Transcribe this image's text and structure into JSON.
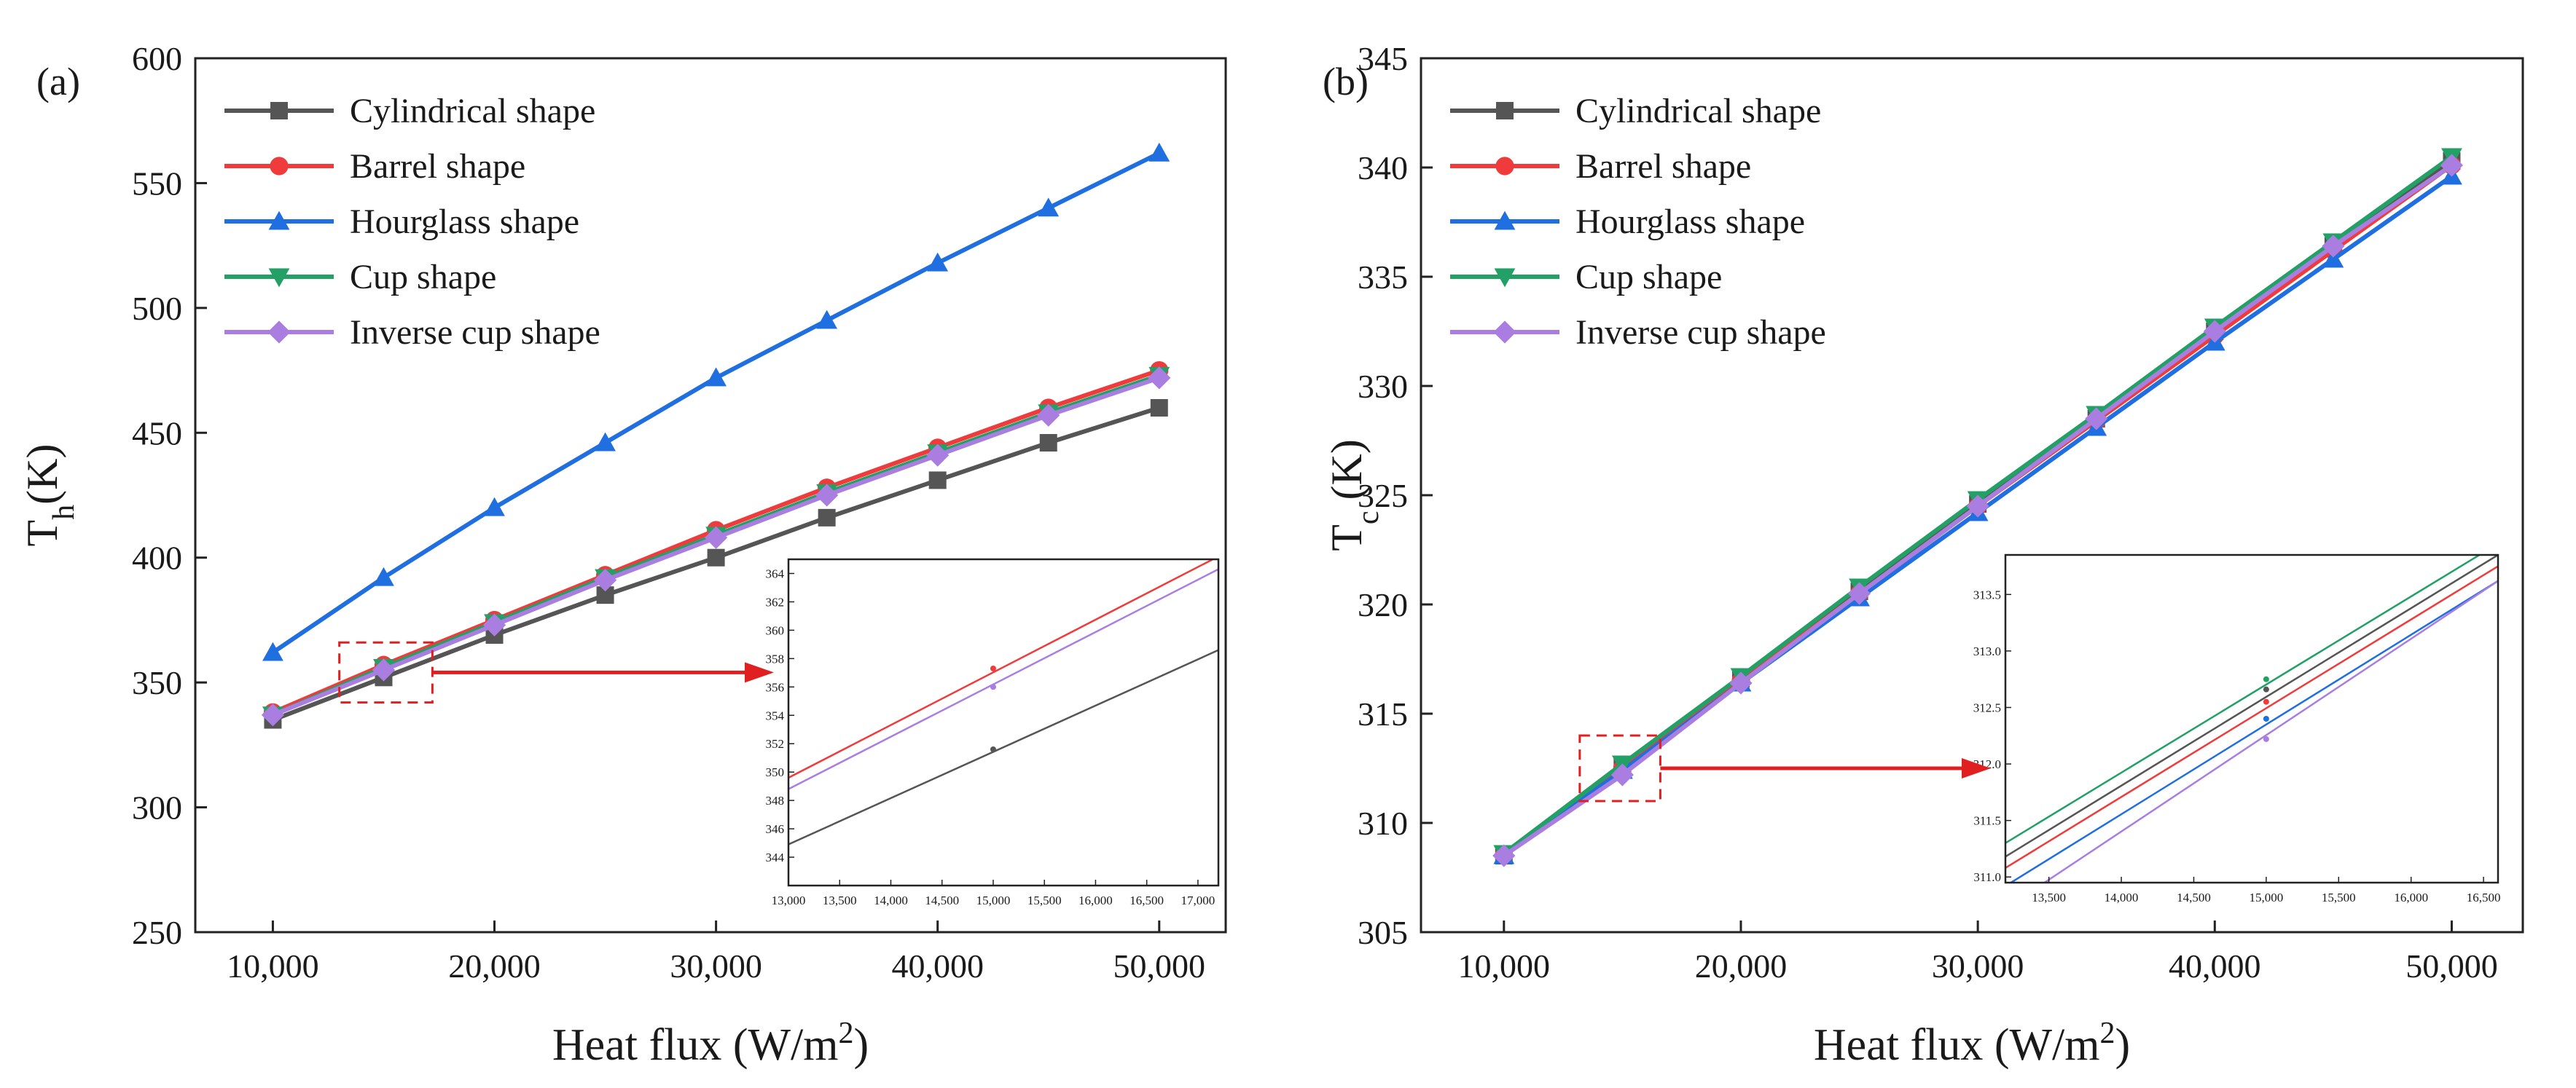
{
  "colors": {
    "Cylindrical shape": "#555555",
    "Barrel shape": "#ef3b3b",
    "Hourglass shape": "#1f6fe0",
    "Cup shape": "#22a066",
    "Inverse cup shape": "#a97ee0",
    "arrow": "#e02020"
  },
  "markers": {
    "Cylindrical shape": "square",
    "Barrel shape": "circle",
    "Hourglass shape": "triangle-up",
    "Cup shape": "triangle-down",
    "Inverse cup shape": "diamond"
  },
  "chart_data": [
    {
      "type": "line",
      "panel_label": "(a)",
      "xlabel": "Heat flux (W/m",
      "xlabel_sup": "2",
      "xlabel_close": ")",
      "ylabel_main": "T",
      "ylabel_sub": "h",
      "ylabel_unit": "(K)",
      "x": [
        10000,
        15000,
        20000,
        25000,
        30000,
        35000,
        40000,
        45000,
        50000
      ],
      "xlim": [
        6500,
        53000
      ],
      "ylim": [
        250,
        600
      ],
      "xticks": [
        10000,
        20000,
        30000,
        40000,
        50000
      ],
      "xtick_labels": [
        "10,000",
        "20,000",
        "30,000",
        "40,000",
        "50,000"
      ],
      "yticks": [
        250,
        300,
        350,
        400,
        450,
        500,
        550,
        600
      ],
      "ytick_labels": [
        "250",
        "300",
        "350",
        "400",
        "450",
        "500",
        "550",
        "600"
      ],
      "legend": [
        "Cylindrical shape",
        "Barrel shape",
        "Hourglass shape",
        "Cup shape",
        "Inverse cup shape"
      ],
      "legend_position": "top-left",
      "series": [
        {
          "name": "Cylindrical shape",
          "values": [
            335,
            352,
            369,
            385,
            400,
            416,
            431,
            446,
            460
          ]
        },
        {
          "name": "Barrel shape",
          "values": [
            338,
            357,
            375,
            393,
            411,
            428,
            444,
            460,
            475
          ]
        },
        {
          "name": "Hourglass shape",
          "values": [
            362,
            392,
            420,
            446,
            472,
            495,
            518,
            540,
            562
          ]
        },
        {
          "name": "Cup shape",
          "values": [
            337,
            356,
            374,
            392,
            409,
            426,
            442,
            458,
            473
          ]
        },
        {
          "name": "Inverse cup shape",
          "values": [
            337,
            355,
            373,
            391,
            408,
            425,
            441,
            457,
            472
          ]
        }
      ],
      "inset": {
        "xlim": [
          13000,
          17200
        ],
        "ylim": [
          342,
          365
        ],
        "xticks": [
          13000,
          13500,
          14000,
          14500,
          15000,
          15500,
          16000,
          16500,
          17000
        ],
        "xtick_labels": [
          "13,000",
          "13,500",
          "14,000",
          "14,500",
          "15,000",
          "15,500",
          "16,000",
          "16,500",
          "17,000"
        ],
        "yticks": [
          344,
          346,
          348,
          350,
          352,
          354,
          356,
          358,
          360,
          362,
          364
        ],
        "ytick_labels": [
          "344",
          "346",
          "348",
          "350",
          "352",
          "354",
          "356",
          "358",
          "360",
          "362",
          "364"
        ],
        "series": [
          {
            "name": "Cylindrical shape",
            "line": [
              [
                13000,
                344.9
              ],
              [
                17200,
                358.6
              ]
            ],
            "point": [
              15000,
              351.6
            ]
          },
          {
            "name": "Barrel shape",
            "line": [
              [
                13000,
                349.6
              ],
              [
                17200,
                365.2
              ]
            ],
            "point": [
              15000,
              357.3
            ]
          },
          {
            "name": "Inverse cup shape",
            "line": [
              [
                13000,
                348.8
              ],
              [
                17200,
                364.3
              ]
            ],
            "point": [
              15000,
              356.0
            ]
          }
        ]
      }
    },
    {
      "type": "line",
      "panel_label": "(b)",
      "xlabel": "Heat flux (W/m",
      "xlabel_sup": "2",
      "xlabel_close": ")",
      "ylabel_main": "T",
      "ylabel_sub": "c",
      "ylabel_unit": " (K)",
      "x": [
        10000,
        15000,
        20000,
        25000,
        30000,
        35000,
        40000,
        45000,
        50000
      ],
      "xlim": [
        6500,
        53000
      ],
      "ylim": [
        305,
        345
      ],
      "xticks": [
        10000,
        20000,
        30000,
        40000,
        50000
      ],
      "xtick_labels": [
        "10,000",
        "20,000",
        "30,000",
        "40,000",
        "50,000"
      ],
      "yticks": [
        305,
        310,
        315,
        320,
        325,
        330,
        335,
        340,
        345
      ],
      "ytick_labels": [
        "305",
        "310",
        "315",
        "320",
        "325",
        "330",
        "335",
        "340",
        "345"
      ],
      "legend": [
        "Cylindrical shape",
        "Barrel shape",
        "Hourglass shape",
        "Cup shape",
        "Inverse cup shape"
      ],
      "legend_position": "top-left",
      "series": [
        {
          "name": "Cylindrical shape",
          "values": [
            308.5,
            312.6,
            316.6,
            320.6,
            324.6,
            328.5,
            332.5,
            336.4,
            340.3
          ]
        },
        {
          "name": "Barrel shape",
          "values": [
            308.5,
            312.5,
            316.5,
            320.5,
            324.5,
            328.4,
            332.3,
            336.2,
            340.1
          ]
        },
        {
          "name": "Hourglass shape",
          "values": [
            308.5,
            312.4,
            316.4,
            320.3,
            324.2,
            328.1,
            332.0,
            335.8,
            339.6
          ]
        },
        {
          "name": "Cup shape",
          "values": [
            308.6,
            312.7,
            316.7,
            320.8,
            324.8,
            328.7,
            332.7,
            336.6,
            340.5
          ]
        },
        {
          "name": "Inverse cup shape",
          "values": [
            308.5,
            312.2,
            316.4,
            320.5,
            324.5,
            328.5,
            332.5,
            336.4,
            340.1
          ]
        }
      ],
      "inset": {
        "xlim": [
          13200,
          16600
        ],
        "ylim": [
          310.95,
          313.85
        ],
        "xticks": [
          13500,
          14000,
          14500,
          15000,
          15500,
          16000,
          16500
        ],
        "xtick_labels": [
          "13,500",
          "14,000",
          "14,500",
          "15,000",
          "15,500",
          "16,000",
          "16,500"
        ],
        "yticks": [
          311.0,
          311.5,
          312.0,
          312.5,
          313.0,
          313.5
        ],
        "ytick_labels": [
          "311.0",
          "311.5",
          "312.0",
          "312.5",
          "313.0",
          "313.5"
        ],
        "series": [
          {
            "name": "Cup shape",
            "line": [
              [
                13200,
                311.3
              ],
              [
                16600,
                313.95
              ]
            ],
            "point": [
              15000,
              312.75
            ]
          },
          {
            "name": "Cylindrical shape",
            "line": [
              [
                13200,
                311.18
              ],
              [
                16600,
                313.85
              ]
            ],
            "point": [
              15000,
              312.66
            ]
          },
          {
            "name": "Barrel shape",
            "line": [
              [
                13200,
                311.08
              ],
              [
                16600,
                313.75
              ]
            ],
            "point": [
              15000,
              312.55
            ]
          },
          {
            "name": "Hourglass shape",
            "line": [
              [
                13200,
                310.92
              ],
              [
                16600,
                313.62
              ]
            ],
            "point": [
              15000,
              312.4
            ]
          },
          {
            "name": "Inverse cup shape",
            "line": [
              [
                13200,
                310.72
              ],
              [
                16600,
                313.62
              ]
            ],
            "point": [
              15000,
              312.22
            ]
          }
        ]
      }
    }
  ]
}
